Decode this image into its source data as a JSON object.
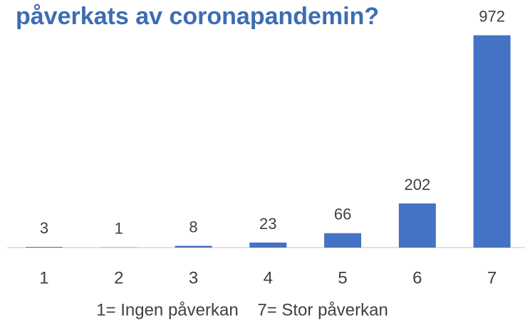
{
  "chart_data": {
    "type": "bar",
    "title": "påverkats av coronapandemin?",
    "categories": [
      "1",
      "2",
      "3",
      "4",
      "5",
      "6",
      "7"
    ],
    "values": [
      3,
      1,
      8,
      23,
      66,
      202,
      972
    ],
    "color": "#4472c4",
    "xlabel": "1= Ingen påverkan    7= Stor påverkan",
    "ylim": [
      0,
      1000
    ]
  }
}
